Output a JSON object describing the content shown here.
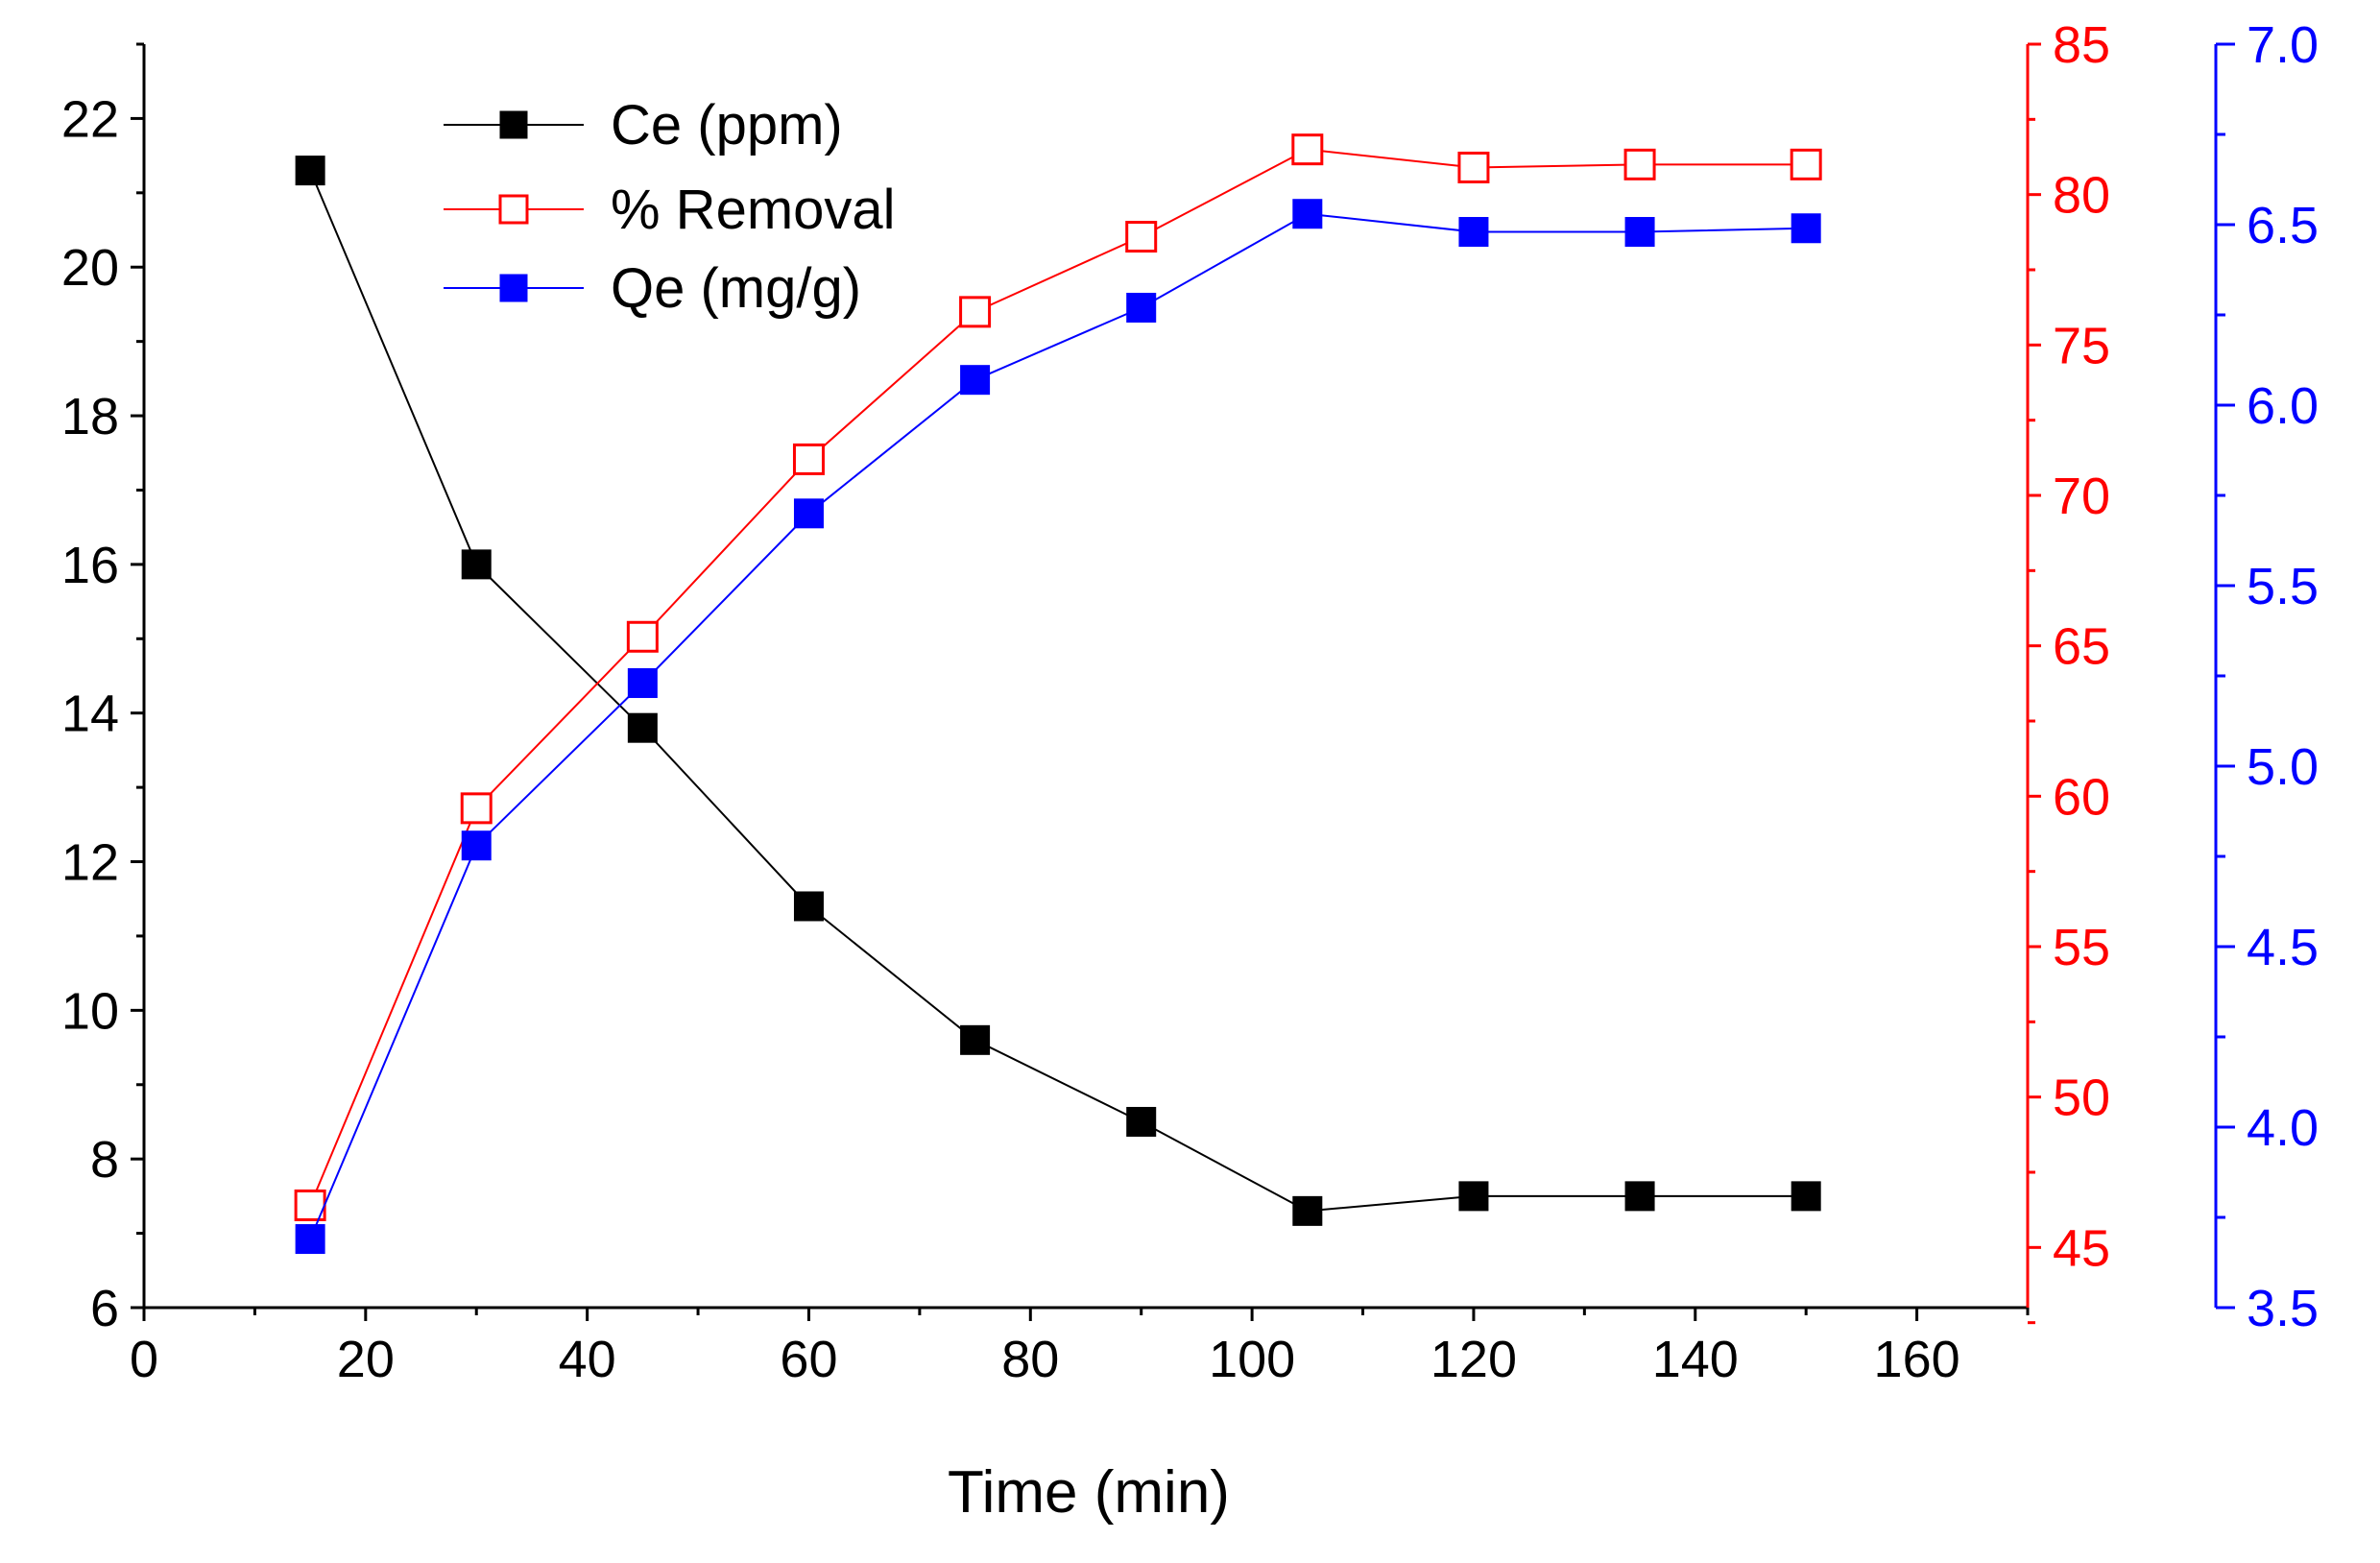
{
  "chart_data": {
    "type": "line",
    "title": "",
    "xlabel": "Time (min)",
    "xlim": [
      0,
      170
    ],
    "x_ticks": [
      0,
      20,
      40,
      60,
      80,
      100,
      120,
      140,
      160
    ],
    "x_tick_labels": [
      "0",
      "20",
      "40",
      "60",
      "80",
      "100",
      "120",
      "140",
      "160"
    ],
    "x": [
      15,
      30,
      45,
      60,
      75,
      90,
      105,
      120,
      135,
      150
    ],
    "axes": {
      "left": {
        "ylim": [
          6,
          23
        ],
        "ticks": [
          6,
          8,
          10,
          12,
          14,
          16,
          18,
          20,
          22
        ],
        "tick_labels": [
          "6",
          "8",
          "10",
          "12",
          "14",
          "16",
          "18",
          "20",
          "22"
        ],
        "color": "#000000"
      },
      "right": {
        "ylim": [
          43,
          85
        ],
        "ticks": [
          45,
          50,
          55,
          60,
          65,
          70,
          75,
          80,
          85
        ],
        "tick_labels": [
          "45",
          "50",
          "55",
          "60",
          "65",
          "70",
          "75",
          "80",
          "85"
        ],
        "color": "#ff0000"
      },
      "right2": {
        "ylim": [
          3.5,
          7.0
        ],
        "ticks": [
          3.5,
          4.0,
          4.5,
          5.0,
          5.5,
          6.0,
          6.5,
          7.0
        ],
        "tick_labels": [
          "3.5",
          "4.0",
          "4.5",
          "5.0",
          "5.5",
          "6.0",
          "6.5",
          "7.0"
        ],
        "color": "#0000ff"
      }
    },
    "series": [
      {
        "name": "Ce (ppm)",
        "axis": "left",
        "color": "#000000",
        "marker": "filled-square",
        "values": [
          21.3,
          16.0,
          13.8,
          11.4,
          9.6,
          8.5,
          7.3,
          7.5,
          7.5,
          7.5
        ]
      },
      {
        "name": "% Removal",
        "axis": "right",
        "color": "#ff0000",
        "marker": "open-square",
        "values": [
          46.4,
          59.6,
          65.3,
          71.2,
          76.1,
          78.6,
          81.5,
          80.9,
          81.0,
          81.0
        ]
      },
      {
        "name": "Qe (mg/g)",
        "axis": "right2",
        "color": "#0000ff",
        "marker": "filled-square",
        "values": [
          3.69,
          4.78,
          5.23,
          5.7,
          6.07,
          6.27,
          6.53,
          6.48,
          6.48,
          6.49
        ]
      }
    ],
    "legend": {
      "position": "top-left",
      "entries": [
        "Ce (ppm)",
        "% Removal",
        "Qe (mg/g)"
      ]
    }
  }
}
